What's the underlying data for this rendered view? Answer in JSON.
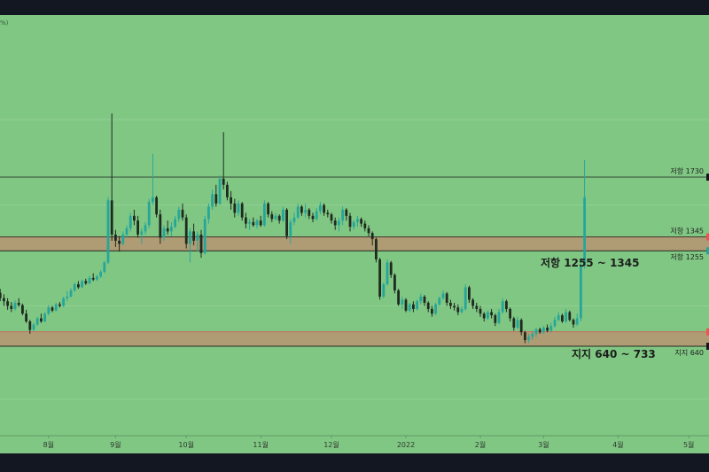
{
  "chart_data": {
    "type": "candlestick",
    "title": "",
    "symbol_hint": "%)",
    "colors": {
      "background": "#81c784",
      "frame": "#131722",
      "up": "#26a69a",
      "down": "#1f2a1f",
      "zone_fill": "#b79471",
      "zone_edge": "#d45a5a",
      "level_line": "#1b1f1b",
      "label_text": "#1b1f1b",
      "marker_teal": "#26a69a",
      "marker_red": "#ef5350"
    },
    "y_range": [
      -100,
      2400
    ],
    "x_ticks": [
      {
        "label": "8월",
        "i": 14
      },
      {
        "label": "9월",
        "i": 32
      },
      {
        "label": "10월",
        "i": 51
      },
      {
        "label": "11월",
        "i": 71
      },
      {
        "label": "12월",
        "i": 90
      },
      {
        "label": "2022",
        "i": 110
      },
      {
        "label": "2월",
        "i": 130
      },
      {
        "label": "3월",
        "i": 147
      },
      {
        "label": "4월",
        "i": 167
      },
      {
        "label": "5월",
        "i": 186
      }
    ],
    "levels": [
      {
        "label": "저항 1730",
        "value": 1730
      },
      {
        "label": "저항 1345",
        "value": 1345
      },
      {
        "label": "저항 1255",
        "value": 1255
      },
      {
        "label": "지지 640",
        "value": 640
      }
    ],
    "zones": [
      {
        "label": "저항 1255 ~ 1345",
        "low": 1255,
        "high": 1345
      },
      {
        "label": "지지 640 ~ 733",
        "low": 640,
        "high": 733
      }
    ],
    "candles": [
      [
        960,
        1000,
        925,
        985
      ],
      [
        985,
        1010,
        930,
        950
      ],
      [
        950,
        975,
        900,
        930
      ],
      [
        930,
        950,
        875,
        900
      ],
      [
        900,
        925,
        860,
        880
      ],
      [
        880,
        935,
        870,
        920
      ],
      [
        920,
        950,
        895,
        905
      ],
      [
        905,
        915,
        840,
        850
      ],
      [
        850,
        875,
        790,
        800
      ],
      [
        800,
        810,
        720,
        745
      ],
      [
        745,
        790,
        740,
        780
      ],
      [
        780,
        830,
        770,
        820
      ],
      [
        820,
        850,
        790,
        800
      ],
      [
        800,
        860,
        795,
        850
      ],
      [
        850,
        905,
        840,
        890
      ],
      [
        890,
        900,
        860,
        870
      ],
      [
        870,
        920,
        865,
        910
      ],
      [
        910,
        925,
        890,
        900
      ],
      [
        900,
        960,
        895,
        950
      ],
      [
        950,
        995,
        930,
        960
      ],
      [
        960,
        1015,
        955,
        1000
      ],
      [
        1000,
        1050,
        990,
        1040
      ],
      [
        1040,
        1060,
        1010,
        1020
      ],
      [
        1020,
        1070,
        1015,
        1060
      ],
      [
        1060,
        1075,
        1035,
        1045
      ],
      [
        1045,
        1095,
        1040,
        1080
      ],
      [
        1080,
        1110,
        1060,
        1070
      ],
      [
        1070,
        1100,
        1060,
        1090
      ],
      [
        1090,
        1130,
        1080,
        1120
      ],
      [
        1120,
        1190,
        1110,
        1180
      ],
      [
        1180,
        1600,
        1170,
        1580
      ],
      [
        1580,
        2140,
        1320,
        1360
      ],
      [
        1360,
        1390,
        1280,
        1320
      ],
      [
        1320,
        1350,
        1250,
        1300
      ],
      [
        1300,
        1380,
        1290,
        1360
      ],
      [
        1360,
        1420,
        1340,
        1400
      ],
      [
        1400,
        1500,
        1380,
        1480
      ],
      [
        1480,
        1520,
        1420,
        1450
      ],
      [
        1450,
        1480,
        1340,
        1360
      ],
      [
        1360,
        1400,
        1300,
        1380
      ],
      [
        1380,
        1440,
        1360,
        1420
      ],
      [
        1420,
        1590,
        1400,
        1570
      ],
      [
        1570,
        1880,
        1550,
        1600
      ],
      [
        1600,
        1610,
        1470,
        1490
      ],
      [
        1490,
        1520,
        1300,
        1340
      ],
      [
        1340,
        1420,
        1320,
        1400
      ],
      [
        1400,
        1450,
        1360,
        1380
      ],
      [
        1380,
        1440,
        1350,
        1410
      ],
      [
        1410,
        1480,
        1400,
        1460
      ],
      [
        1460,
        1540,
        1440,
        1520
      ],
      [
        1520,
        1560,
        1450,
        1470
      ],
      [
        1470,
        1490,
        1270,
        1300
      ],
      [
        1300,
        1400,
        1180,
        1380
      ],
      [
        1380,
        1430,
        1290,
        1320
      ],
      [
        1320,
        1380,
        1250,
        1360
      ],
      [
        1360,
        1390,
        1210,
        1240
      ],
      [
        1240,
        1480,
        1230,
        1460
      ],
      [
        1460,
        1560,
        1430,
        1540
      ],
      [
        1540,
        1650,
        1520,
        1620
      ],
      [
        1620,
        1680,
        1540,
        1560
      ],
      [
        1560,
        1740,
        1550,
        1720
      ],
      [
        1720,
        2020,
        1650,
        1680
      ],
      [
        1680,
        1700,
        1580,
        1600
      ],
      [
        1600,
        1640,
        1520,
        1560
      ],
      [
        1560,
        1590,
        1470,
        1500
      ],
      [
        1500,
        1580,
        1480,
        1560
      ],
      [
        1560,
        1570,
        1450,
        1470
      ],
      [
        1470,
        1500,
        1400,
        1430
      ],
      [
        1430,
        1460,
        1390,
        1440
      ],
      [
        1440,
        1470,
        1410,
        1420
      ],
      [
        1420,
        1460,
        1400,
        1450
      ],
      [
        1450,
        1480,
        1410,
        1420
      ],
      [
        1420,
        1580,
        1410,
        1560
      ],
      [
        1560,
        1570,
        1470,
        1490
      ],
      [
        1490,
        1510,
        1440,
        1460
      ],
      [
        1460,
        1500,
        1450,
        1480
      ],
      [
        1480,
        1490,
        1430,
        1450
      ],
      [
        1450,
        1540,
        1440,
        1520
      ],
      [
        1520,
        1530,
        1330,
        1350
      ],
      [
        1350,
        1460,
        1300,
        1440
      ],
      [
        1440,
        1500,
        1420,
        1470
      ],
      [
        1470,
        1560,
        1460,
        1540
      ],
      [
        1540,
        1550,
        1480,
        1500
      ],
      [
        1500,
        1560,
        1470,
        1520
      ],
      [
        1520,
        1530,
        1460,
        1480
      ],
      [
        1480,
        1500,
        1440,
        1460
      ],
      [
        1460,
        1530,
        1450,
        1510
      ],
      [
        1510,
        1570,
        1490,
        1550
      ],
      [
        1550,
        1560,
        1480,
        1500
      ],
      [
        1500,
        1520,
        1470,
        1490
      ],
      [
        1490,
        1500,
        1430,
        1450
      ],
      [
        1450,
        1470,
        1390,
        1420
      ],
      [
        1420,
        1470,
        1380,
        1450
      ],
      [
        1450,
        1540,
        1420,
        1520
      ],
      [
        1520,
        1530,
        1450,
        1480
      ],
      [
        1480,
        1500,
        1380,
        1410
      ],
      [
        1410,
        1450,
        1390,
        1440
      ],
      [
        1440,
        1480,
        1410,
        1460
      ],
      [
        1460,
        1470,
        1410,
        1430
      ],
      [
        1430,
        1450,
        1380,
        1400
      ],
      [
        1400,
        1420,
        1350,
        1370
      ],
      [
        1370,
        1380,
        1290,
        1330
      ],
      [
        1330,
        1340,
        1180,
        1200
      ],
      [
        1200,
        1210,
        940,
        960
      ],
      [
        960,
        1050,
        950,
        1040
      ],
      [
        1040,
        1200,
        1030,
        1180
      ],
      [
        1180,
        1190,
        1080,
        1100
      ],
      [
        1100,
        1110,
        980,
        1000
      ],
      [
        1000,
        1010,
        900,
        910
      ],
      [
        910,
        960,
        880,
        940
      ],
      [
        940,
        950,
        860,
        870
      ],
      [
        870,
        920,
        860,
        910
      ],
      [
        910,
        930,
        860,
        880
      ],
      [
        880,
        940,
        870,
        930
      ],
      [
        930,
        980,
        910,
        960
      ],
      [
        960,
        970,
        900,
        920
      ],
      [
        920,
        930,
        860,
        880
      ],
      [
        880,
        900,
        830,
        850
      ],
      [
        850,
        920,
        840,
        910
      ],
      [
        910,
        960,
        900,
        950
      ],
      [
        950,
        1000,
        940,
        980
      ],
      [
        980,
        990,
        900,
        920
      ],
      [
        920,
        940,
        880,
        900
      ],
      [
        900,
        920,
        870,
        890
      ],
      [
        890,
        910,
        840,
        860
      ],
      [
        860,
        900,
        850,
        880
      ],
      [
        880,
        1040,
        870,
        1020
      ],
      [
        1020,
        1030,
        920,
        940
      ],
      [
        940,
        950,
        880,
        900
      ],
      [
        900,
        920,
        860,
        880
      ],
      [
        880,
        900,
        830,
        850
      ],
      [
        850,
        860,
        800,
        820
      ],
      [
        820,
        870,
        810,
        860
      ],
      [
        860,
        880,
        820,
        840
      ],
      [
        840,
        850,
        770,
        790
      ],
      [
        790,
        880,
        780,
        860
      ],
      [
        860,
        950,
        850,
        930
      ],
      [
        930,
        940,
        860,
        880
      ],
      [
        880,
        890,
        800,
        820
      ],
      [
        820,
        830,
        740,
        760
      ],
      [
        760,
        830,
        750,
        810
      ],
      [
        810,
        820,
        710,
        730
      ],
      [
        730,
        740,
        660,
        680
      ],
      [
        680,
        720,
        660,
        700
      ],
      [
        700,
        740,
        680,
        720
      ],
      [
        720,
        760,
        700,
        750
      ],
      [
        750,
        760,
        720,
        730
      ],
      [
        730,
        770,
        720,
        760
      ],
      [
        760,
        780,
        730,
        740
      ],
      [
        740,
        790,
        730,
        770
      ],
      [
        770,
        830,
        760,
        810
      ],
      [
        810,
        860,
        800,
        840
      ],
      [
        840,
        850,
        790,
        800
      ],
      [
        800,
        880,
        790,
        860
      ],
      [
        860,
        870,
        800,
        810
      ],
      [
        810,
        820,
        760,
        780
      ],
      [
        780,
        850,
        770,
        820
      ],
      [
        820,
        1180,
        800,
        1160
      ],
      [
        1160,
        1840,
        1140,
        1600
      ]
    ]
  }
}
